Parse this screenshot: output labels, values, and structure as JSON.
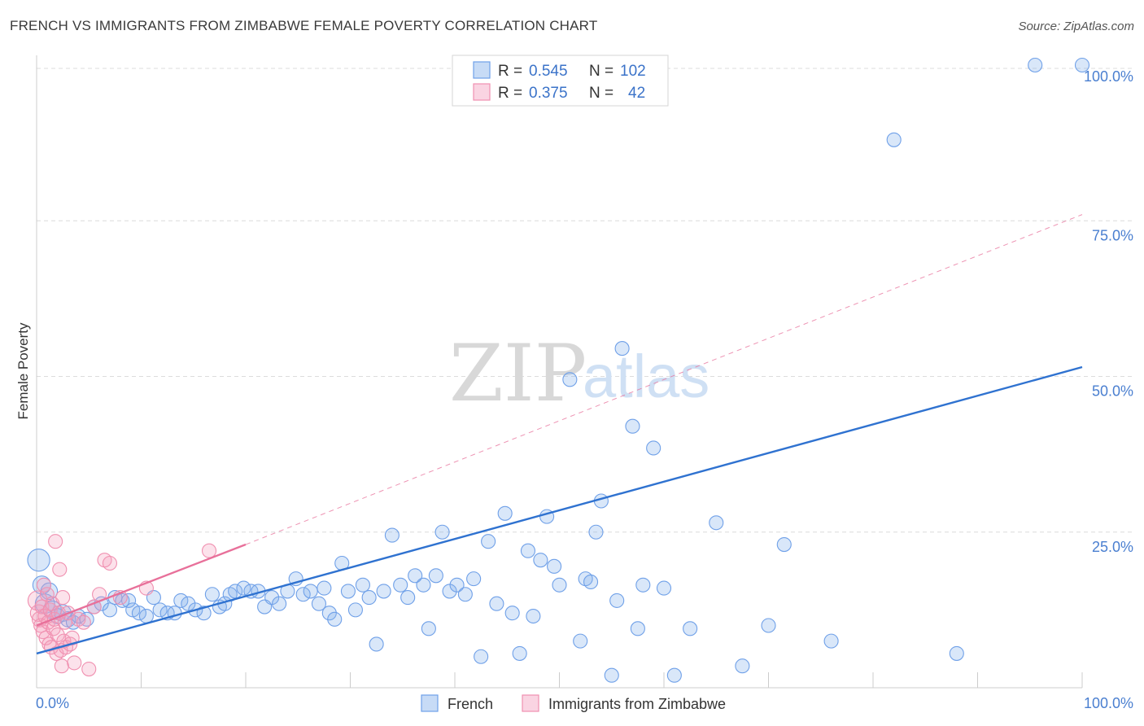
{
  "title": "FRENCH VS IMMIGRANTS FROM ZIMBABWE FEMALE POVERTY CORRELATION CHART",
  "source": "Source: ZipAtlas.com",
  "watermark": {
    "zip": "ZIP",
    "atlas": "atlas"
  },
  "colors": {
    "french": "#6fa0e8",
    "french_fill": "rgba(130,175,235,0.30)",
    "french_line": "#2f72d0",
    "zimbabwe": "#f090b0",
    "zimbabwe_fill": "rgba(245,160,190,0.30)",
    "zimbabwe_line": "#e8709a",
    "grid": "#dcdcdc",
    "axis_label": "#4a7fd0"
  },
  "legend": {
    "rows": [
      {
        "r_label": "R =",
        "r_value": "0.545",
        "n_label": "N =",
        "n_value": "102"
      },
      {
        "r_label": "R =",
        "r_value": "0.375",
        "n_label": "N =",
        "n_value": "42"
      }
    ]
  },
  "chart_data": {
    "type": "scatter",
    "title": "FRENCH VS IMMIGRANTS FROM ZIMBABWE FEMALE POVERTY CORRELATION CHART",
    "xlabel": "",
    "ylabel": "Female Poverty",
    "xlim": [
      0,
      100
    ],
    "ylim": [
      0,
      100
    ],
    "x_tick_labels": [
      "0.0%",
      "100.0%"
    ],
    "y_tick_labels": [
      "25.0%",
      "50.0%",
      "75.0%",
      "100.0%"
    ],
    "y_ticks": [
      25,
      50,
      75,
      100
    ],
    "series": [
      {
        "name": "French",
        "r": 0.545,
        "n": 102,
        "trend": {
          "x0": 0,
          "y0": 5.5,
          "x1": 100,
          "y1": 51.5
        },
        "points": [
          [
            0.2,
            20.5,
            1.6
          ],
          [
            0.5,
            16.5,
            1.3
          ],
          [
            0.8,
            13.5,
            1.4
          ],
          [
            1.2,
            15.5,
            1.2
          ],
          [
            1.5,
            12.5,
            1.3
          ],
          [
            2.0,
            11.5,
            1.1
          ],
          [
            2.5,
            12.0,
            1.2
          ],
          [
            3.0,
            11.0,
            1.1
          ],
          [
            3.5,
            10.5,
            1.0
          ],
          [
            4.0,
            11.5,
            1.0
          ],
          [
            4.8,
            11.0,
            1.0
          ],
          [
            5.5,
            13.0,
            1.0
          ],
          [
            6.2,
            13.5,
            1.0
          ],
          [
            7.0,
            12.5,
            1.0
          ],
          [
            7.5,
            14.5,
            1.0
          ],
          [
            8.2,
            14.0,
            1.0
          ],
          [
            8.8,
            14.0,
            1.0
          ],
          [
            9.2,
            12.5,
            1.0
          ],
          [
            9.8,
            12.0,
            1.0
          ],
          [
            10.5,
            11.5,
            1.0
          ],
          [
            11.2,
            14.5,
            1.0
          ],
          [
            11.8,
            12.5,
            1.0
          ],
          [
            12.5,
            12.0,
            1.0
          ],
          [
            13.2,
            12.0,
            1.0
          ],
          [
            13.8,
            14.0,
            1.0
          ],
          [
            14.5,
            13.5,
            1.0
          ],
          [
            15.2,
            12.5,
            1.0
          ],
          [
            16.0,
            12.0,
            1.0
          ],
          [
            16.8,
            15.0,
            1.0
          ],
          [
            17.5,
            13.0,
            1.0
          ],
          [
            18.0,
            13.5,
            1.0
          ],
          [
            18.5,
            15.0,
            1.0
          ],
          [
            19.0,
            15.5,
            1.0
          ],
          [
            19.8,
            16.0,
            1.0
          ],
          [
            20.5,
            15.5,
            1.0
          ],
          [
            21.2,
            15.5,
            1.0
          ],
          [
            21.8,
            13.0,
            1.0
          ],
          [
            22.5,
            14.5,
            1.0
          ],
          [
            23.2,
            13.5,
            1.0
          ],
          [
            24.0,
            15.5,
            1.0
          ],
          [
            24.8,
            17.5,
            1.0
          ],
          [
            25.5,
            15.0,
            1.0
          ],
          [
            26.2,
            15.5,
            1.0
          ],
          [
            27.0,
            13.5,
            1.0
          ],
          [
            27.5,
            16.0,
            1.0
          ],
          [
            28.0,
            12.0,
            1.0
          ],
          [
            28.5,
            11.0,
            1.0
          ],
          [
            29.2,
            20.0,
            1.0
          ],
          [
            29.8,
            15.5,
            1.0
          ],
          [
            30.5,
            12.5,
            1.0
          ],
          [
            31.2,
            16.5,
            1.0
          ],
          [
            31.8,
            14.5,
            1.0
          ],
          [
            32.5,
            7.0,
            1.0
          ],
          [
            33.2,
            15.5,
            1.0
          ],
          [
            34.0,
            24.5,
            1.0
          ],
          [
            34.8,
            16.5,
            1.0
          ],
          [
            35.5,
            14.5,
            1.0
          ],
          [
            36.2,
            18.0,
            1.0
          ],
          [
            37.0,
            16.5,
            1.0
          ],
          [
            37.5,
            9.5,
            1.0
          ],
          [
            38.2,
            18.0,
            1.0
          ],
          [
            38.8,
            25.0,
            1.0
          ],
          [
            39.5,
            15.5,
            1.0
          ],
          [
            40.2,
            16.5,
            1.0
          ],
          [
            41.0,
            15.0,
            1.0
          ],
          [
            41.8,
            17.5,
            1.0
          ],
          [
            42.5,
            5.0,
            1.0
          ],
          [
            43.2,
            23.5,
            1.0
          ],
          [
            44.0,
            13.5,
            1.0
          ],
          [
            44.8,
            28.0,
            1.0
          ],
          [
            45.5,
            12.0,
            1.0
          ],
          [
            46.2,
            5.5,
            1.0
          ],
          [
            47.0,
            22.0,
            1.0
          ],
          [
            47.5,
            11.5,
            1.0
          ],
          [
            48.2,
            20.5,
            1.0
          ],
          [
            48.8,
            27.5,
            1.0
          ],
          [
            49.5,
            19.5,
            1.0
          ],
          [
            50.0,
            16.5,
            1.0
          ],
          [
            51.0,
            49.5,
            1.0
          ],
          [
            52.0,
            7.5,
            1.0
          ],
          [
            52.5,
            17.5,
            1.0
          ],
          [
            53.0,
            17.0,
            1.0
          ],
          [
            53.5,
            25.0,
            1.0
          ],
          [
            54.0,
            30.0,
            1.0
          ],
          [
            55.0,
            2.0,
            1.0
          ],
          [
            55.5,
            14.0,
            1.0
          ],
          [
            56.0,
            54.5,
            1.0
          ],
          [
            57.0,
            42.0,
            1.0
          ],
          [
            57.5,
            9.5,
            1.0
          ],
          [
            58.0,
            16.5,
            1.0
          ],
          [
            59.0,
            38.5,
            1.0
          ],
          [
            60.0,
            16.0,
            1.0
          ],
          [
            61.0,
            2.0,
            1.0
          ],
          [
            62.5,
            9.5,
            1.0
          ],
          [
            65.0,
            26.5,
            1.0
          ],
          [
            67.5,
            3.5,
            1.0
          ],
          [
            70.0,
            10.0,
            1.0
          ],
          [
            71.5,
            23.0,
            1.0
          ],
          [
            76.0,
            7.5,
            1.0
          ],
          [
            82.0,
            88.0,
            1.0
          ],
          [
            88.0,
            5.5,
            1.0
          ],
          [
            95.5,
            100.0,
            1.0
          ],
          [
            100.0,
            100.0,
            1.0
          ]
        ]
      },
      {
        "name": "Immigrants from Zimbabwe",
        "r": 0.375,
        "n": 42,
        "trend": {
          "x0": 0,
          "y0": 10.0,
          "x1": 20,
          "y1": 23.0,
          "dash_x1": 100,
          "dash_y1": 76.0
        },
        "points": [
          [
            0.1,
            14.0,
            1.4
          ],
          [
            0.2,
            12.0,
            1.2
          ],
          [
            0.3,
            11.0,
            1.1
          ],
          [
            0.4,
            10.0,
            1.0
          ],
          [
            0.5,
            13.0,
            1.0
          ],
          [
            0.6,
            9.0,
            1.0
          ],
          [
            0.7,
            16.5,
            1.0
          ],
          [
            0.8,
            11.5,
            1.0
          ],
          [
            0.9,
            8.0,
            1.0
          ],
          [
            1.0,
            15.0,
            1.0
          ],
          [
            1.1,
            10.5,
            1.0
          ],
          [
            1.2,
            7.0,
            1.0
          ],
          [
            1.3,
            12.5,
            1.0
          ],
          [
            1.4,
            6.5,
            1.0
          ],
          [
            1.5,
            13.5,
            1.0
          ],
          [
            1.6,
            9.5,
            1.0
          ],
          [
            1.7,
            11.0,
            1.0
          ],
          [
            1.8,
            23.5,
            1.0
          ],
          [
            1.9,
            5.5,
            1.0
          ],
          [
            2.0,
            8.5,
            1.0
          ],
          [
            2.1,
            12.0,
            1.0
          ],
          [
            2.2,
            19.0,
            1.0
          ],
          [
            2.3,
            6.0,
            1.0
          ],
          [
            2.4,
            3.5,
            1.0
          ],
          [
            2.5,
            14.5,
            1.0
          ],
          [
            2.6,
            7.5,
            1.0
          ],
          [
            2.7,
            10.5,
            1.0
          ],
          [
            2.8,
            6.5,
            1.0
          ],
          [
            3.0,
            12.0,
            1.0
          ],
          [
            3.2,
            7.0,
            1.0
          ],
          [
            3.4,
            8.0,
            1.0
          ],
          [
            3.6,
            4.0,
            1.0
          ],
          [
            4.0,
            11.0,
            1.0
          ],
          [
            4.5,
            10.5,
            1.0
          ],
          [
            5.0,
            3.0,
            1.0
          ],
          [
            5.5,
            13.0,
            1.0
          ],
          [
            6.0,
            15.0,
            1.0
          ],
          [
            6.5,
            20.5,
            1.0
          ],
          [
            7.0,
            20.0,
            1.0
          ],
          [
            8.0,
            14.5,
            1.0
          ],
          [
            10.5,
            16.0,
            1.0
          ],
          [
            16.5,
            22.0,
            1.0
          ]
        ]
      }
    ],
    "legend": [
      "French",
      "Immigrants from Zimbabwe"
    ],
    "legend_position": "top-center"
  }
}
